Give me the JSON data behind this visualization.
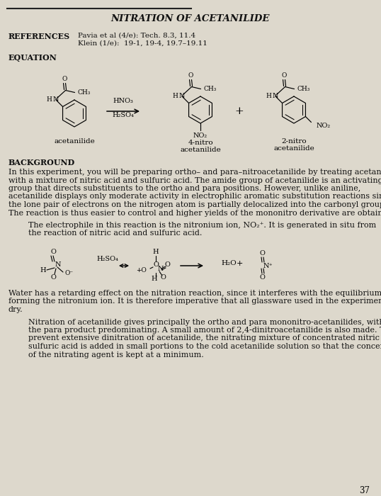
{
  "bg_color": "#ddd8cc",
  "title": "NITRATION OF ACETANILIDE",
  "references_label": "REFERENCES",
  "ref_line1": "Pavia et al (4/e): Tech. 8.3, 11.4",
  "ref_line2": "Klein (1/e):  19-1, 19-4, 19.7–19.11",
  "equation_label": "EQUATION",
  "background_label": "BACKGROUND",
  "page_number": "37",
  "compound1": "acetanilide",
  "compound2": "4-nitro\nacetanilide",
  "compound3": "2-nitro\nacetanilide",
  "para1_italic_ortho": "ortho",
  "para1_italic_para": "para",
  "font_size_body": 8.0,
  "font_size_small": 7.0
}
